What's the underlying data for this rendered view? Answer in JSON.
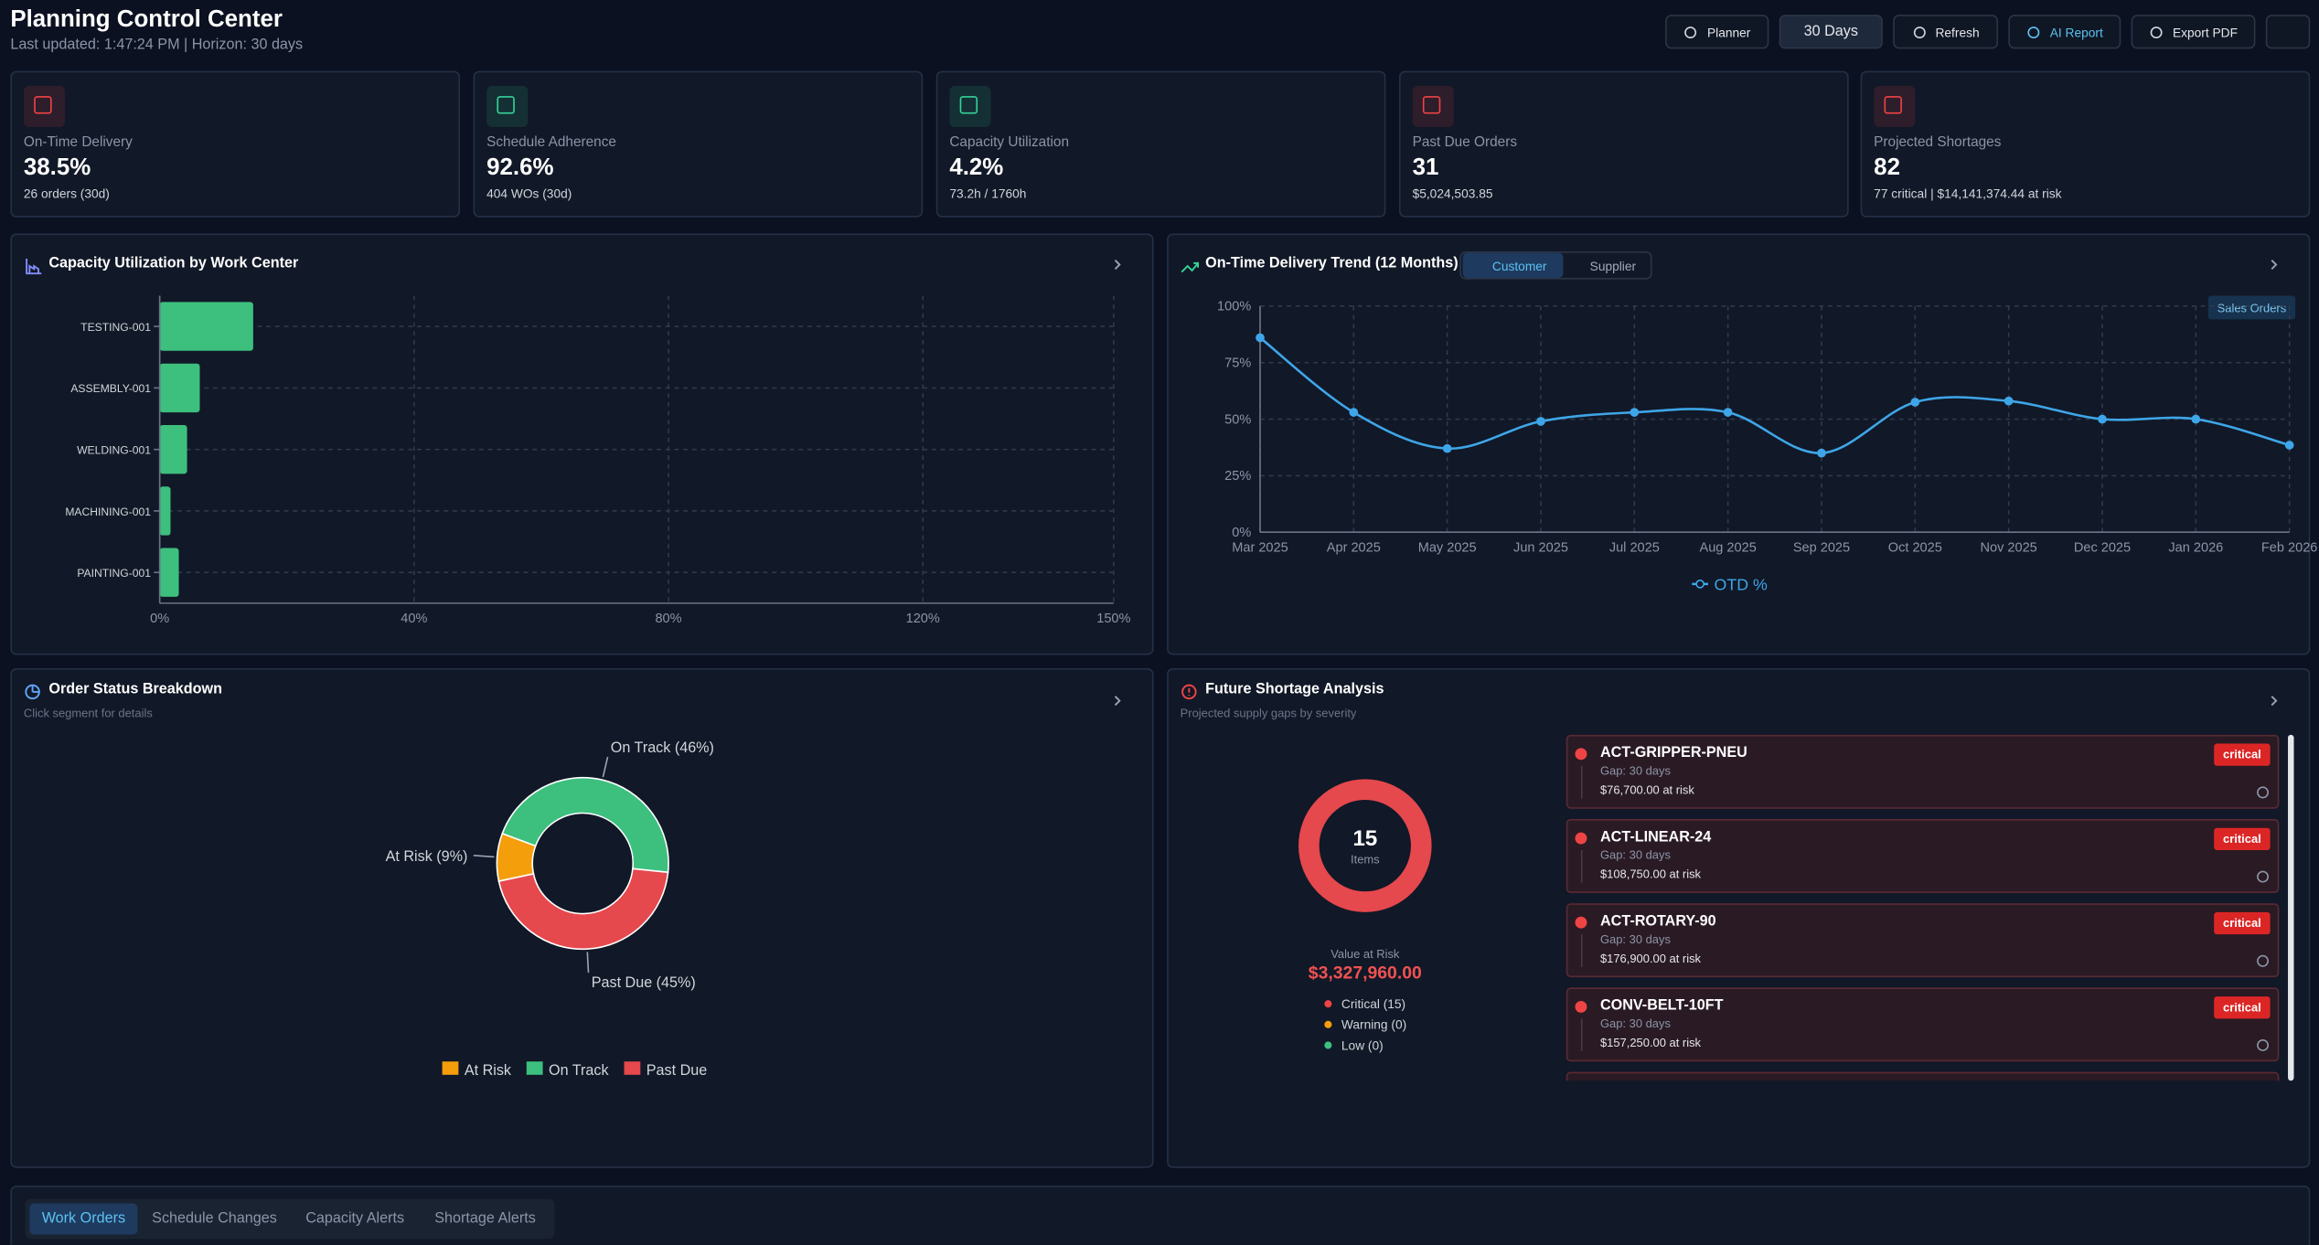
{
  "header": {
    "title": "Planning Control Center",
    "subtitle": "Last updated: 1:47:24 PM | Horizon: 30 days",
    "buttons": [
      "Planner",
      "30 Days",
      "Refresh",
      "AI Report",
      "Export PDF"
    ]
  },
  "kpis": [
    {
      "label": "On-Time Delivery",
      "value": "38.5%",
      "detail": "26 orders (30d)",
      "color": "#ef4444"
    },
    {
      "label": "Schedule Adherence",
      "value": "92.6%",
      "detail": "404 WOs (30d)",
      "color": "#34d399"
    },
    {
      "label": "Capacity Utilization",
      "value": "4.2%",
      "detail": "73.2h / 1760h",
      "color": "#34d399"
    },
    {
      "label": "Past Due Orders",
      "value": "31",
      "detail": "$5,024,503.85",
      "color": "#ef4444"
    },
    {
      "label": "Projected Shortages",
      "value": "82",
      "detail": "77 critical | $14,141,374.44 at risk",
      "color": "#ef4444"
    }
  ],
  "chart_data": [
    {
      "type": "bar",
      "title": "Capacity Utilization by Work Center",
      "categories": [
        "TESTING-001",
        "ASSEMBLY-001",
        "WELDING-001",
        "MACHINING-001",
        "PAINTING-001"
      ],
      "values": [
        14.7,
        6.3,
        4.3,
        1.7,
        3.0
      ],
      "color": "#3dbf7e",
      "xlim": [
        0,
        150
      ],
      "xticks": [
        {
          "value": 0,
          "label": "0%"
        },
        {
          "value": 40,
          "label": "40%"
        },
        {
          "value": 80,
          "label": "80%"
        },
        {
          "value": 120,
          "label": "120%"
        },
        {
          "value": 150,
          "label": "150%"
        }
      ],
      "grid": true
    },
    {
      "type": "line",
      "title": "On-Time Delivery Trend (12 Months)",
      "toggle": [
        "Customer",
        "Supplier"
      ],
      "badge": "Sales Orders",
      "x": [
        "Mar 2025",
        "Apr 2025",
        "May 2025",
        "Jun 2025",
        "Jul 2025",
        "Aug 2025",
        "Sep 2025",
        "Oct 2025",
        "Nov 2025",
        "Dec 2025",
        "Jan 2026",
        "Feb 2026"
      ],
      "series": [
        {
          "name": "OTD %",
          "color": "#3ea6e8",
          "values": [
            86,
            53,
            37,
            49,
            53,
            53,
            35,
            57.5,
            58,
            50,
            50,
            38.5
          ]
        }
      ],
      "ylim": [
        0,
        100
      ],
      "yticks": [
        {
          "value": 0,
          "label": "0%"
        },
        {
          "value": 25,
          "label": "25%"
        },
        {
          "value": 50,
          "label": "50%"
        },
        {
          "value": 75,
          "label": "75%"
        },
        {
          "value": 100,
          "label": "100%"
        }
      ],
      "grid": true
    },
    {
      "type": "pie",
      "title": "Order Status Breakdown",
      "subtitle": "Click segment for details",
      "categories": [
        "At Risk",
        "On Track",
        "Past Due"
      ],
      "values": [
        9,
        46,
        45
      ],
      "value_labels": [
        "At Risk (9%)",
        "On Track (46%)",
        "Past Due (45%)"
      ],
      "colors": [
        "#f59e0b",
        "#3dbf7e",
        "#e5484d"
      ]
    }
  ],
  "shortage": {
    "title": "Future Shortage Analysis",
    "subtitle": "Projected supply gaps by severity",
    "count": "15",
    "count_label": "Items",
    "value_title": "Value at Risk",
    "value": "$3,327,960.00",
    "legend": [
      {
        "label": "Critical (15)",
        "color": "#ef4444"
      },
      {
        "label": "Warning (0)",
        "color": "#f59e0b"
      },
      {
        "label": "Low (0)",
        "color": "#3dbf7e"
      }
    ],
    "items": [
      {
        "name": "ACT-GRIPPER-PNEU",
        "gap": "Gap: 30 days",
        "value": "$76,700.00 at risk",
        "severity": "critical"
      },
      {
        "name": "ACT-LINEAR-24",
        "gap": "Gap: 30 days",
        "value": "$108,750.00 at risk",
        "severity": "critical"
      },
      {
        "name": "ACT-ROTARY-90",
        "gap": "Gap: 30 days",
        "value": "$176,900.00 at risk",
        "severity": "critical"
      },
      {
        "name": "CONV-BELT-10FT",
        "gap": "Gap: 30 days",
        "value": "$157,250.00 at risk",
        "severity": "critical"
      }
    ]
  },
  "tabs": {
    "items": [
      "Work Orders",
      "Schedule Changes",
      "Capacity Alerts",
      "Shortage Alerts"
    ],
    "active": 0
  }
}
